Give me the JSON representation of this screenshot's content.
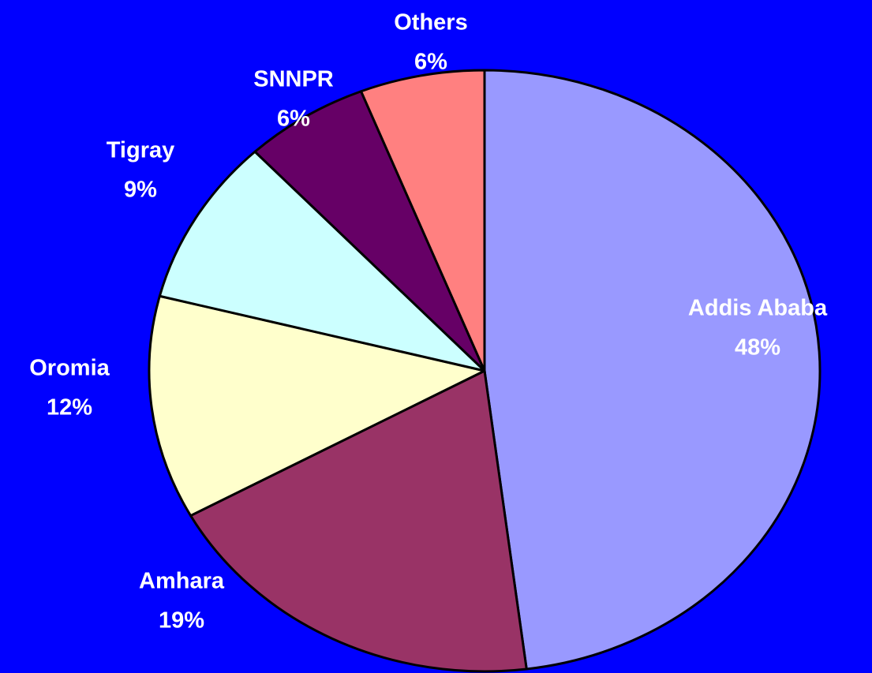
{
  "chart_data": {
    "type": "pie",
    "categories": [
      "Addis Ababa",
      "Amhara",
      "Oromia",
      "Tigray",
      "SNNPR",
      "Others"
    ],
    "values": [
      48,
      19,
      12,
      9,
      6,
      6
    ],
    "value_labels": [
      "48%",
      "19%",
      "12%",
      "9%",
      "6%",
      "6%"
    ],
    "colors": [
      "#9999ff",
      "#993366",
      "#ffffcc",
      "#ccffff",
      "#660066",
      "#ff8080"
    ]
  }
}
